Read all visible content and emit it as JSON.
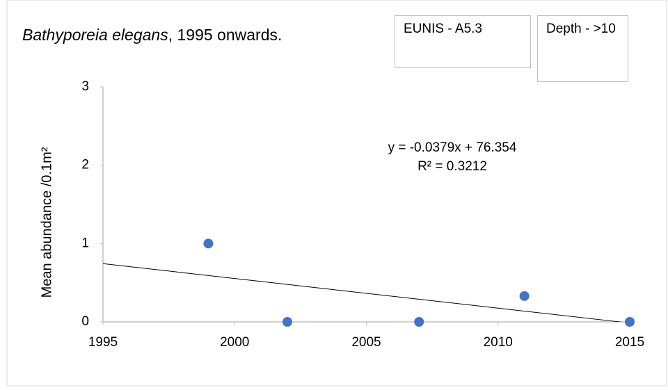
{
  "chart_data": {
    "type": "scatter",
    "title": {
      "species": "Bathyporeia elegans",
      "rest": ", 1995 onwards."
    },
    "y_label": "Mean abundance /0.1m²",
    "annotations": [
      "EUNIS - A5.3",
      "Depth - >10"
    ],
    "x": [
      1999,
      2002,
      2007,
      2011,
      2015
    ],
    "values": [
      1,
      0,
      0,
      0.33,
      0
    ],
    "color": "#4472c4",
    "xlim": [
      1995,
      2015
    ],
    "xticks": [
      1995,
      2000,
      2005,
      2010,
      2015
    ],
    "ylim": [
      0,
      3
    ],
    "yticks": [
      0,
      1,
      2,
      3
    ],
    "trendline": {
      "equation": "y = -0.0379x + 76.354",
      "r_squared": "R² = 0.3212",
      "slope": -0.0379,
      "intercept": 76.354
    }
  }
}
